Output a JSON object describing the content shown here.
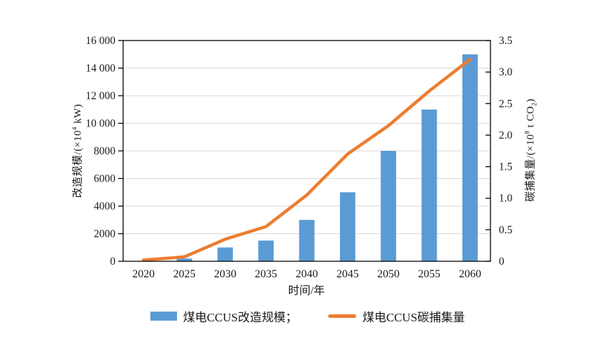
{
  "chart_data": {
    "type": "bar",
    "subtype": "bar-line-combo-dual-axis",
    "categories": [
      "2020",
      "2025",
      "2030",
      "2035",
      "2040",
      "2045",
      "2050",
      "2055",
      "2060"
    ],
    "series": [
      {
        "name": "煤电CCUS改造规模",
        "render": "bar",
        "axis": "left",
        "color": "#5B9BD5",
        "values": [
          0,
          200,
          1000,
          1500,
          3000,
          5000,
          8000,
          11000,
          15000
        ]
      },
      {
        "name": "煤电CCUS碳捕集量",
        "render": "line",
        "axis": "right",
        "color": "#ED7D31",
        "values": [
          0.02,
          0.07,
          0.35,
          0.55,
          1.05,
          1.7,
          2.15,
          2.7,
          3.2
        ]
      }
    ],
    "title": "",
    "xlabel": "时间/年",
    "left_axis": {
      "label_prefix": "改造规模/(×10",
      "label_sup": "4",
      "label_suffix": " kW)",
      "min": 0,
      "max": 16000,
      "tick_step": 2000,
      "tick_labels": [
        "0",
        "2000",
        "4000",
        "6000",
        "8000",
        "10 000",
        "12 000",
        "14 000",
        "16 000"
      ]
    },
    "right_axis": {
      "label_prefix": "碳捕集量/(×10",
      "label_sup": "8",
      "label_mid": " t CO",
      "label_sub": "2",
      "label_suffix": ")",
      "min": 0,
      "max": 3.5,
      "tick_step": 0.5,
      "tick_labels": [
        "0",
        "0.5",
        "1.0",
        "1.5",
        "2.0",
        "2.5",
        "3.0",
        "3.5"
      ]
    },
    "grid": "horizontal lines at left-axis 2000 steps",
    "legend_position": "bottom-center",
    "legend": [
      {
        "swatch": "bar",
        "label": "煤电CCUS改造规模；"
      },
      {
        "swatch": "line",
        "label": "煤电CCUS碳捕集量"
      }
    ],
    "colors": {
      "bar": "#5B9BD5",
      "line": "#ED7D31",
      "grid": "#D9D9D9",
      "axis": "#000000",
      "text": "#1A1A1A",
      "background": "#FFFFFF"
    }
  }
}
